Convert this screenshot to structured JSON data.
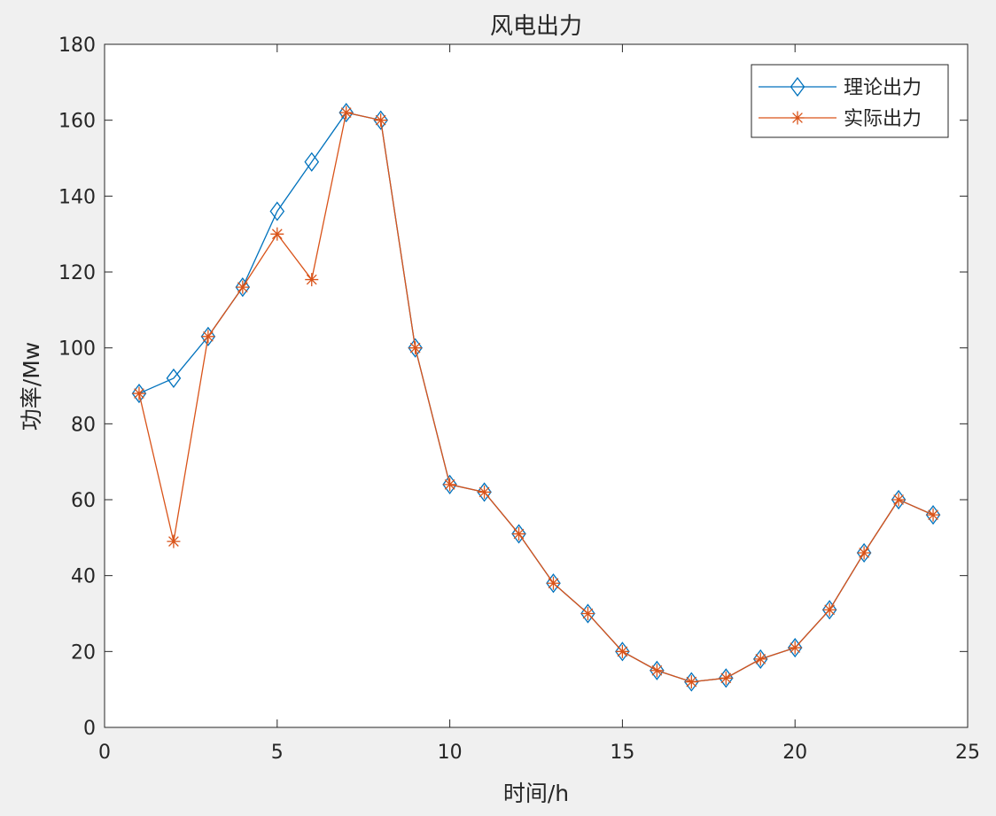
{
  "chart_data": {
    "type": "line",
    "title": "风电出力",
    "xlabel": "时间/h",
    "ylabel": "功率/Mw",
    "xlim": [
      0,
      25
    ],
    "ylim": [
      0,
      180
    ],
    "xticks": [
      0,
      5,
      10,
      15,
      20,
      25
    ],
    "yticks": [
      0,
      20,
      40,
      60,
      80,
      100,
      120,
      140,
      160,
      180
    ],
    "grid": false,
    "legend_position": "top-right",
    "x": [
      1,
      2,
      3,
      4,
      5,
      6,
      7,
      8,
      9,
      10,
      11,
      12,
      13,
      14,
      15,
      16,
      17,
      18,
      19,
      20,
      21,
      22,
      23,
      24
    ],
    "series": [
      {
        "name": "理论出力",
        "color": "#0072bd",
        "marker": "diamond",
        "values": [
          88,
          92,
          103,
          116,
          136,
          149,
          162,
          160,
          100,
          64,
          62,
          51,
          38,
          30,
          20,
          15,
          12,
          13,
          18,
          21,
          31,
          46,
          60,
          56
        ]
      },
      {
        "name": "实际出力",
        "color": "#d95319",
        "marker": "asterisk",
        "values": [
          88,
          49,
          103,
          116,
          130,
          118,
          162,
          160,
          100,
          64,
          62,
          51,
          38,
          30,
          20,
          15,
          12,
          13,
          18,
          21,
          31,
          46,
          60,
          56
        ]
      }
    ]
  }
}
